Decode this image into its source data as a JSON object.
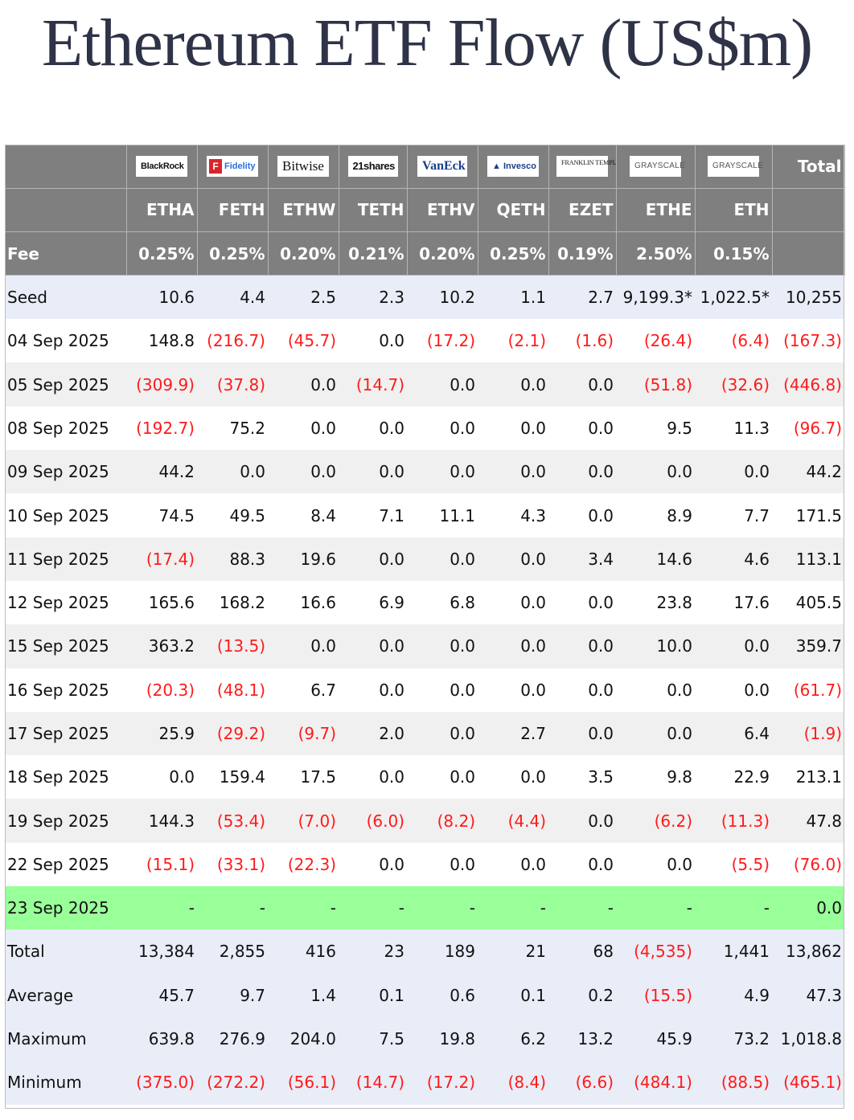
{
  "title": "Ethereum ETF Flow (US$m)",
  "logos": [
    {
      "icon": "blackrock-logo",
      "text": "BlackRock"
    },
    {
      "icon": "fidelity-logo",
      "text": "Fidelity"
    },
    {
      "icon": "bitwise-logo",
      "text": "Bitwise"
    },
    {
      "icon": "21shares-logo",
      "text": "21shares"
    },
    {
      "icon": "vaneck-logo",
      "text": "VanEck"
    },
    {
      "icon": "invesco-logo",
      "text": "Invesco"
    },
    {
      "icon": "franklin-templeton-logo",
      "text": "FRANKLIN TEMPLETON"
    },
    {
      "icon": "grayscale-logo",
      "text": "GRAYSCALE"
    },
    {
      "icon": "grayscale-logo",
      "text": "GRAYSCALE"
    }
  ],
  "total_header": "Total",
  "tickers": [
    "ETHA",
    "FETH",
    "ETHW",
    "TETH",
    "ETHV",
    "QETH",
    "EZET",
    "ETHE",
    "ETH"
  ],
  "fee_label": "Fee",
  "fees": [
    "0.25%",
    "0.25%",
    "0.20%",
    "0.21%",
    "0.20%",
    "0.25%",
    "0.19%",
    "2.50%",
    "0.15%"
  ],
  "seed": {
    "label": "Seed",
    "values": [
      "10.6",
      "4.4",
      "2.5",
      "2.3",
      "10.2",
      "1.1",
      "2.7",
      "9,199.3*",
      "1,022.5*"
    ],
    "total": "10,255"
  },
  "rows": [
    {
      "date": "04 Sep 2025",
      "values": [
        "148.8",
        "(216.7)",
        "(45.7)",
        "0.0",
        "(17.2)",
        "(2.1)",
        "(1.6)",
        "(26.4)",
        "(6.4)"
      ],
      "total": "(167.3)"
    },
    {
      "date": "05 Sep 2025",
      "values": [
        "(309.9)",
        "(37.8)",
        "0.0",
        "(14.7)",
        "0.0",
        "0.0",
        "0.0",
        "(51.8)",
        "(32.6)"
      ],
      "total": "(446.8)"
    },
    {
      "date": "08 Sep 2025",
      "values": [
        "(192.7)",
        "75.2",
        "0.0",
        "0.0",
        "0.0",
        "0.0",
        "0.0",
        "9.5",
        "11.3"
      ],
      "total": "(96.7)"
    },
    {
      "date": "09 Sep 2025",
      "values": [
        "44.2",
        "0.0",
        "0.0",
        "0.0",
        "0.0",
        "0.0",
        "0.0",
        "0.0",
        "0.0"
      ],
      "total": "44.2"
    },
    {
      "date": "10 Sep 2025",
      "values": [
        "74.5",
        "49.5",
        "8.4",
        "7.1",
        "11.1",
        "4.3",
        "0.0",
        "8.9",
        "7.7"
      ],
      "total": "171.5"
    },
    {
      "date": "11 Sep 2025",
      "values": [
        "(17.4)",
        "88.3",
        "19.6",
        "0.0",
        "0.0",
        "0.0",
        "3.4",
        "14.6",
        "4.6"
      ],
      "total": "113.1"
    },
    {
      "date": "12 Sep 2025",
      "values": [
        "165.6",
        "168.2",
        "16.6",
        "6.9",
        "6.8",
        "0.0",
        "0.0",
        "23.8",
        "17.6"
      ],
      "total": "405.5"
    },
    {
      "date": "15 Sep 2025",
      "values": [
        "363.2",
        "(13.5)",
        "0.0",
        "0.0",
        "0.0",
        "0.0",
        "0.0",
        "10.0",
        "0.0"
      ],
      "total": "359.7"
    },
    {
      "date": "16 Sep 2025",
      "values": [
        "(20.3)",
        "(48.1)",
        "6.7",
        "0.0",
        "0.0",
        "0.0",
        "0.0",
        "0.0",
        "0.0"
      ],
      "total": "(61.7)"
    },
    {
      "date": "17 Sep 2025",
      "values": [
        "25.9",
        "(29.2)",
        "(9.7)",
        "2.0",
        "0.0",
        "2.7",
        "0.0",
        "0.0",
        "6.4"
      ],
      "total": "(1.9)"
    },
    {
      "date": "18 Sep 2025",
      "values": [
        "0.0",
        "159.4",
        "17.5",
        "0.0",
        "0.0",
        "0.0",
        "3.5",
        "9.8",
        "22.9"
      ],
      "total": "213.1"
    },
    {
      "date": "19 Sep 2025",
      "values": [
        "144.3",
        "(53.4)",
        "(7.0)",
        "(6.0)",
        "(8.2)",
        "(4.4)",
        "0.0",
        "(6.2)",
        "(11.3)"
      ],
      "total": "47.8"
    },
    {
      "date": "22 Sep 2025",
      "values": [
        "(15.1)",
        "(33.1)",
        "(22.3)",
        "0.0",
        "0.0",
        "0.0",
        "0.0",
        "0.0",
        "(5.5)"
      ],
      "total": "(76.0)"
    }
  ],
  "today": {
    "date": "23 Sep 2025",
    "values": [
      "-",
      "-",
      "-",
      "-",
      "-",
      "-",
      "-",
      "-",
      "-"
    ],
    "total": "0.0"
  },
  "summary": [
    {
      "label": "Total",
      "values": [
        "13,384",
        "2,855",
        "416",
        "23",
        "189",
        "21",
        "68",
        "(4,535)",
        "1,441"
      ],
      "total": "13,862"
    },
    {
      "label": "Average",
      "values": [
        "45.7",
        "9.7",
        "1.4",
        "0.1",
        "0.6",
        "0.1",
        "0.2",
        "(15.5)",
        "4.9"
      ],
      "total": "47.3"
    },
    {
      "label": "Maximum",
      "values": [
        "639.8",
        "276.9",
        "204.0",
        "7.5",
        "19.8",
        "6.2",
        "13.2",
        "45.9",
        "73.2"
      ],
      "total": "1,018.8"
    },
    {
      "label": "Minimum",
      "values": [
        "(375.0)",
        "(272.2)",
        "(56.1)",
        "(14.7)",
        "(17.2)",
        "(8.4)",
        "(6.6)",
        "(484.1)",
        "(88.5)"
      ],
      "total": "(465.1)"
    }
  ],
  "colors": {
    "negative": "#ff1a1a",
    "header": "#7f7f7f",
    "today_row": "#99ff99",
    "seed_row": "#e9edf8",
    "title": "#2f3347"
  }
}
